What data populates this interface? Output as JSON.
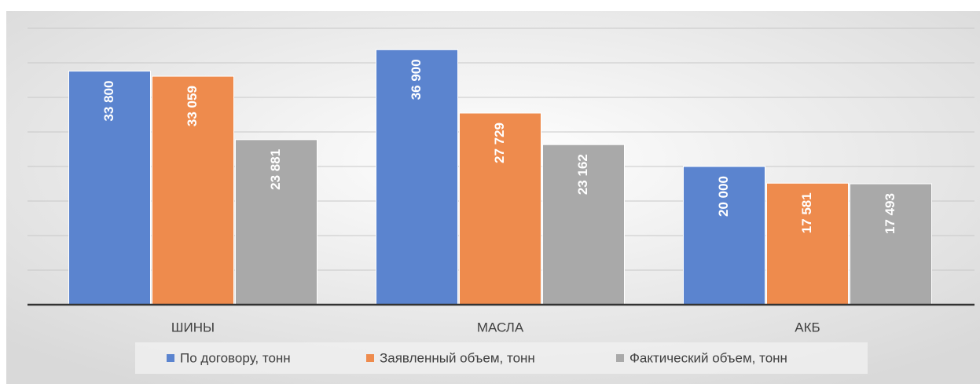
{
  "chart_data": {
    "type": "bar",
    "categories": [
      "ШИНЫ",
      "МАСЛА",
      "АКБ"
    ],
    "series": [
      {
        "name": "По договору, тонн",
        "color": "#5b84cf",
        "values": [
          33800,
          36900,
          20000
        ],
        "value_labels": [
          "33 800",
          "36 900",
          "20 000"
        ]
      },
      {
        "name": "Заявленный объем, тонн",
        "color": "#ee8b4d",
        "values": [
          33059,
          27729,
          17581
        ],
        "value_labels": [
          "33 059",
          "27 729",
          "17 581"
        ]
      },
      {
        "name": "Фактический объем, тонн",
        "color": "#a9a9a9",
        "values": [
          23881,
          23162,
          17493
        ],
        "value_labels": [
          "23 881",
          "23 162",
          "17 493"
        ]
      }
    ],
    "ylim": [
      0,
      40000
    ],
    "yticks": [
      0,
      5000,
      10000,
      15000,
      20000,
      25000,
      30000,
      35000,
      40000
    ],
    "grid": true,
    "legend": "bottom"
  }
}
